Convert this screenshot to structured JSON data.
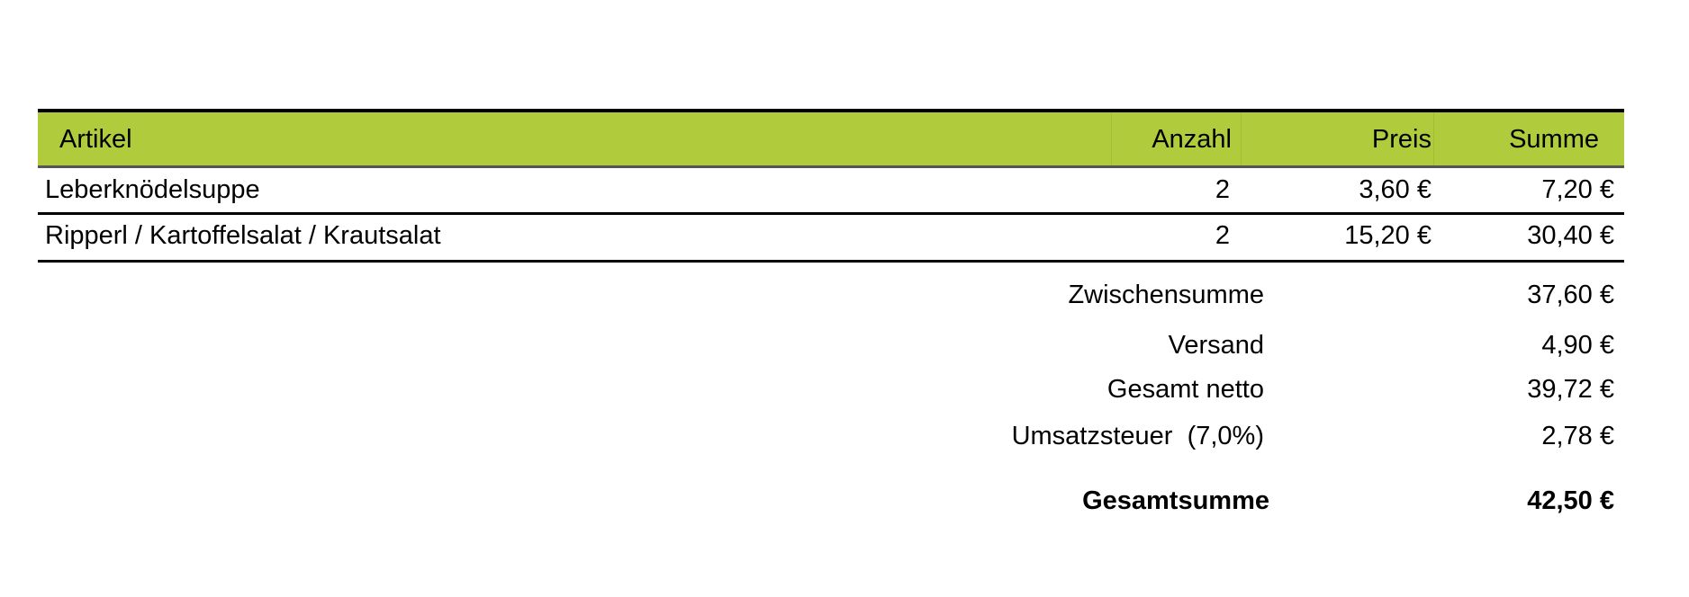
{
  "table": {
    "header_color": "#b0cb3b",
    "columns": [
      "Artikel",
      "Anzahl",
      "Preis",
      "Summe"
    ],
    "rows": [
      {
        "artikel": "Leberknödelsuppe",
        "anzahl": "2",
        "preis": "3,60 €",
        "summe": "7,20 €"
      },
      {
        "artikel": "Ripperl / Kartoffelsalat / Krautsalat",
        "anzahl": "2",
        "preis": "15,20 €",
        "summe": "30,40 €"
      }
    ]
  },
  "totals": [
    {
      "label": "Zwischensumme",
      "value": "37,60 €"
    },
    {
      "label": "Versand",
      "value": "4,90 €"
    },
    {
      "label": "Gesamt netto",
      "value": "39,72 €"
    },
    {
      "label": "Umsatzsteuer  (7,0%)",
      "value": "2,78 €"
    }
  ],
  "grand_total": {
    "label": "Gesamtsumme",
    "value": "42,50 €"
  }
}
